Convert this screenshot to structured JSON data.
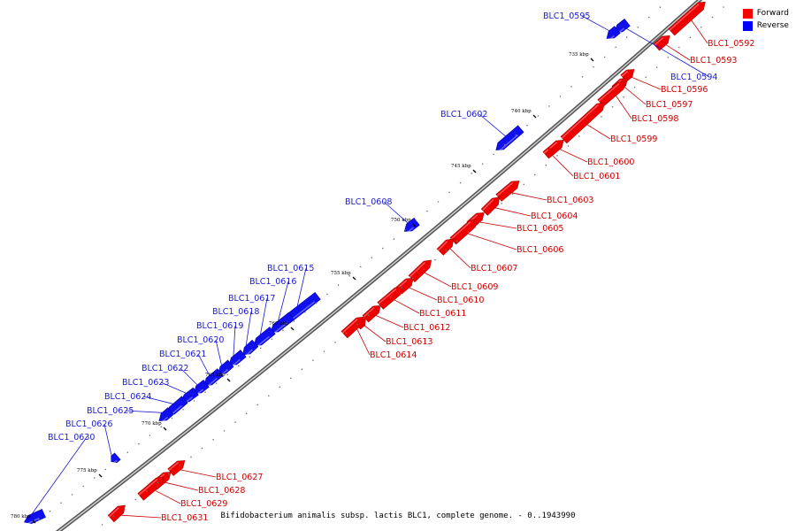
{
  "caption": "Bifidobacterium animalis subsp. lactis BLC1, complete genome. - 0..1943990",
  "legend": [
    {
      "label": "Forward",
      "color": "#ff0000"
    },
    {
      "label": "Reverse",
      "color": "#0000ff"
    }
  ],
  "colors": {
    "forward": "#ee0000",
    "reverse": "#1010ee",
    "backbone": "#888888"
  },
  "kbp_labels": [
    "735 kbp",
    "740 kbp",
    "745 kbp",
    "750 kbp",
    "755 kbp",
    "760 kbp",
    "765 kbp",
    "770 kbp",
    "775 kbp",
    "780 kbp"
  ],
  "forward_genes": [
    {
      "tag": "BLC1_0592"
    },
    {
      "tag": "BLC1_0593"
    },
    {
      "tag": "BLC1_0596"
    },
    {
      "tag": "BLC1_0597"
    },
    {
      "tag": "BLC1_0598"
    },
    {
      "tag": "BLC1_0599"
    },
    {
      "tag": "BLC1_0600"
    },
    {
      "tag": "BLC1_0601"
    },
    {
      "tag": "BLC1_0603"
    },
    {
      "tag": "BLC1_0604"
    },
    {
      "tag": "BLC1_0605"
    },
    {
      "tag": "BLC1_0606"
    },
    {
      "tag": "BLC1_0607"
    },
    {
      "tag": "BLC1_0609"
    },
    {
      "tag": "BLC1_0610"
    },
    {
      "tag": "BLC1_0611"
    },
    {
      "tag": "BLC1_0612"
    },
    {
      "tag": "BLC1_0613"
    },
    {
      "tag": "BLC1_0614"
    },
    {
      "tag": "BLC1_0627"
    },
    {
      "tag": "BLC1_0628"
    },
    {
      "tag": "BLC1_0629"
    },
    {
      "tag": "BLC1_0631"
    }
  ],
  "reverse_genes": [
    {
      "tag": "BLC1_0594"
    },
    {
      "tag": "BLC1_0595"
    },
    {
      "tag": "BLC1_0602"
    },
    {
      "tag": "BLC1_0608"
    },
    {
      "tag": "BLC1_0615"
    },
    {
      "tag": "BLC1_0616"
    },
    {
      "tag": "BLC1_0617"
    },
    {
      "tag": "BLC1_0618"
    },
    {
      "tag": "BLC1_0619"
    },
    {
      "tag": "BLC1_0620"
    },
    {
      "tag": "BLC1_0621"
    },
    {
      "tag": "BLC1_0622"
    },
    {
      "tag": "BLC1_0623"
    },
    {
      "tag": "BLC1_0624"
    },
    {
      "tag": "BLC1_0625"
    },
    {
      "tag": "BLC1_0626"
    },
    {
      "tag": "BLC1_0630"
    }
  ]
}
